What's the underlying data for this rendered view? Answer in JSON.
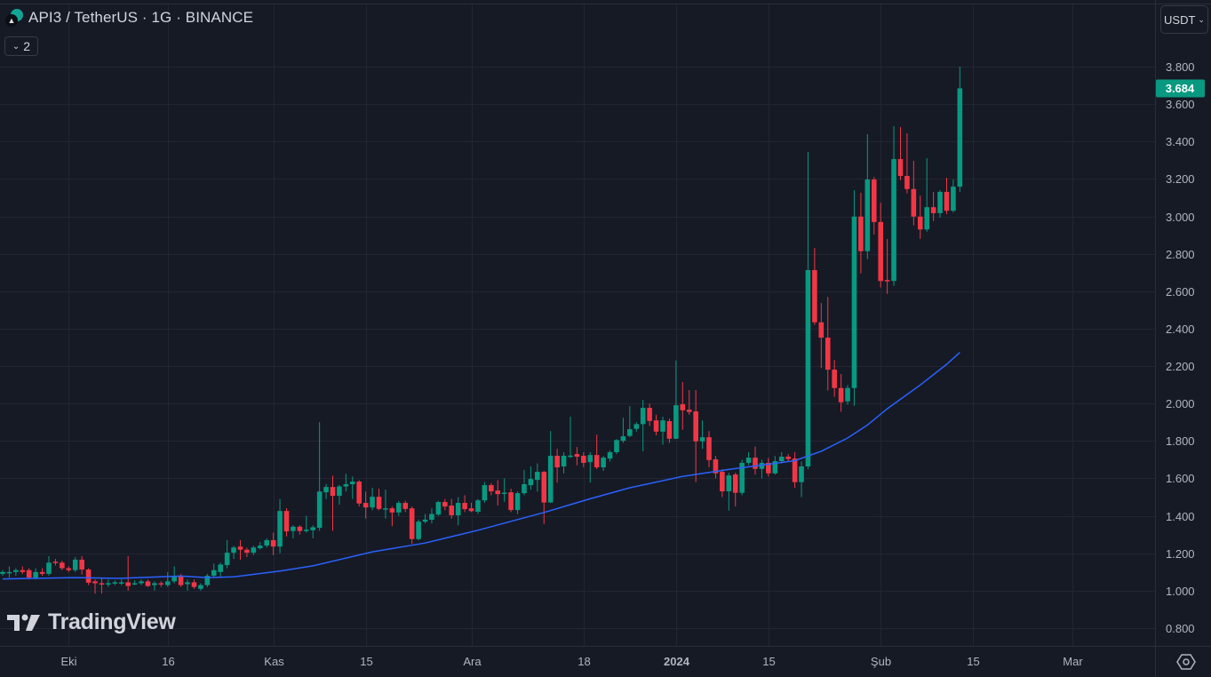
{
  "header": {
    "title": "API3 / TetherUS · 1G · BINANCE",
    "indicator_count": "2",
    "currency": "USDT"
  },
  "watermark": {
    "text": "TradingView"
  },
  "icons": {
    "symbol": "api3-logo-icon",
    "collapse": "chevron-down-icon",
    "currency": "chevron-down-icon",
    "settings": "gear-icon"
  },
  "colors": {
    "up": "#089981",
    "down": "#f23645",
    "ma": "#2962ff",
    "background": "#161a25",
    "grid": "#232632"
  },
  "chart_data": {
    "type": "candlestick",
    "title": "API3 / TetherUS · 1G · BINANCE",
    "ylim": [
      0.7,
      3.9
    ],
    "yticks": [
      "0.800",
      "1.000",
      "1.200",
      "1.400",
      "1.600",
      "1.800",
      "2.000",
      "2.200",
      "2.400",
      "2.600",
      "2.800",
      "3.000",
      "3.200",
      "3.400",
      "3.600",
      "3.800"
    ],
    "last_price": "3.684",
    "xticks": [
      {
        "label": "Eki",
        "index": 10
      },
      {
        "label": "16",
        "index": 25
      },
      {
        "label": "Kas",
        "index": 41
      },
      {
        "label": "15",
        "index": 55
      },
      {
        "label": "Ara",
        "index": 71
      },
      {
        "label": "18",
        "index": 88
      },
      {
        "label": "2024",
        "index": 102,
        "bold": true
      },
      {
        "label": "15",
        "index": 116
      },
      {
        "label": "Şub",
        "index": 133
      },
      {
        "label": "15",
        "index": 147
      },
      {
        "label": "Mar",
        "index": 162
      }
    ],
    "ohlc_fields": [
      "open",
      "high",
      "low",
      "close"
    ],
    "candles": [
      [
        1.09,
        1.11,
        1.08,
        1.1
      ],
      [
        1.1,
        1.13,
        1.07,
        1.1
      ],
      [
        1.1,
        1.12,
        1.08,
        1.11
      ],
      [
        1.11,
        1.13,
        1.09,
        1.1
      ],
      [
        1.11,
        1.12,
        1.06,
        1.07
      ],
      [
        1.07,
        1.12,
        1.06,
        1.1
      ],
      [
        1.1,
        1.12,
        1.08,
        1.09
      ],
      [
        1.09,
        1.185,
        1.08,
        1.15
      ],
      [
        1.155,
        1.17,
        1.135,
        1.15
      ],
      [
        1.15,
        1.16,
        1.11,
        1.12
      ],
      [
        1.12,
        1.13,
        1.1,
        1.11
      ],
      [
        1.11,
        1.18,
        1.1,
        1.166
      ],
      [
        1.166,
        1.185,
        1.086,
        1.113
      ],
      [
        1.113,
        1.12,
        1.03,
        1.043
      ],
      [
        1.05,
        1.06,
        0.985,
        1.04
      ],
      [
        1.04,
        1.07,
        0.985,
        1.035
      ],
      [
        1.035,
        1.06,
        1.02,
        1.04
      ],
      [
        1.04,
        1.055,
        1.03,
        1.045
      ],
      [
        1.04,
        1.06,
        1.03,
        1.045
      ],
      [
        1.045,
        1.185,
        1.0,
        1.025
      ],
      [
        1.04,
        1.055,
        1.03,
        1.04
      ],
      [
        1.04,
        1.06,
        1.03,
        1.05
      ],
      [
        1.05,
        1.06,
        1.02,
        1.025
      ],
      [
        1.03,
        1.05,
        1.0,
        1.04
      ],
      [
        1.04,
        1.05,
        1.02,
        1.035
      ],
      [
        1.03,
        1.1,
        1.02,
        1.05
      ],
      [
        1.05,
        1.13,
        1.04,
        1.08
      ],
      [
        1.08,
        1.09,
        1.02,
        1.03
      ],
      [
        1.035,
        1.06,
        1.0,
        1.045
      ],
      [
        1.045,
        1.06,
        1.01,
        1.02
      ],
      [
        1.01,
        1.04,
        1.0,
        1.03
      ],
      [
        1.03,
        1.09,
        1.02,
        1.08
      ],
      [
        1.08,
        1.145,
        1.07,
        1.11
      ],
      [
        1.1,
        1.15,
        1.07,
        1.14
      ],
      [
        1.137,
        1.27,
        1.12,
        1.203
      ],
      [
        1.203,
        1.24,
        1.17,
        1.231
      ],
      [
        1.236,
        1.27,
        1.165,
        1.219
      ],
      [
        1.219,
        1.23,
        1.18,
        1.203
      ],
      [
        1.203,
        1.24,
        1.19,
        1.231
      ],
      [
        1.227,
        1.26,
        1.22,
        1.241
      ],
      [
        1.241,
        1.28,
        1.23,
        1.27
      ],
      [
        1.27,
        1.31,
        1.19,
        1.236
      ],
      [
        1.236,
        1.49,
        1.2,
        1.426
      ],
      [
        1.426,
        1.44,
        1.29,
        1.317
      ],
      [
        1.319,
        1.35,
        1.28,
        1.342
      ],
      [
        1.342,
        1.35,
        1.3,
        1.319
      ],
      [
        1.326,
        1.4,
        1.31,
        1.326
      ],
      [
        1.323,
        1.35,
        1.28,
        1.339
      ],
      [
        1.336,
        1.9,
        1.32,
        1.53
      ],
      [
        1.526,
        1.57,
        1.49,
        1.554
      ],
      [
        1.554,
        1.615,
        1.32,
        1.507
      ],
      [
        1.507,
        1.565,
        1.46,
        1.557
      ],
      [
        1.557,
        1.625,
        1.53,
        1.569
      ],
      [
        1.569,
        1.61,
        1.49,
        1.583
      ],
      [
        1.583,
        1.59,
        1.45,
        1.466
      ],
      [
        1.469,
        1.53,
        1.385,
        1.445
      ],
      [
        1.445,
        1.55,
        1.43,
        1.502
      ],
      [
        1.502,
        1.545,
        1.43,
        1.437
      ],
      [
        1.437,
        1.54,
        1.385,
        1.44
      ],
      [
        1.44,
        1.45,
        1.345,
        1.418
      ],
      [
        1.418,
        1.48,
        1.4,
        1.469
      ],
      [
        1.469,
        1.48,
        1.42,
        1.437
      ],
      [
        1.44,
        1.45,
        1.25,
        1.276
      ],
      [
        1.276,
        1.38,
        1.27,
        1.369
      ],
      [
        1.369,
        1.41,
        1.36,
        1.38
      ],
      [
        1.379,
        1.44,
        1.36,
        1.41
      ],
      [
        1.407,
        1.48,
        1.4,
        1.474
      ],
      [
        1.474,
        1.49,
        1.43,
        1.45
      ],
      [
        1.455,
        1.49,
        1.385,
        1.403
      ],
      [
        1.403,
        1.5,
        1.35,
        1.469
      ],
      [
        1.469,
        1.51,
        1.42,
        1.436
      ],
      [
        1.44,
        1.47,
        1.42,
        1.425
      ],
      [
        1.422,
        1.49,
        1.41,
        1.483
      ],
      [
        1.483,
        1.58,
        1.47,
        1.564
      ],
      [
        1.564,
        1.575,
        1.51,
        1.531
      ],
      [
        1.535,
        1.59,
        1.455,
        1.516
      ],
      [
        1.524,
        1.6,
        1.475,
        1.524
      ],
      [
        1.526,
        1.545,
        1.42,
        1.431
      ],
      [
        1.431,
        1.53,
        1.41,
        1.521
      ],
      [
        1.521,
        1.645,
        1.51,
        1.569
      ],
      [
        1.564,
        1.664,
        1.54,
        1.597
      ],
      [
        1.592,
        1.68,
        1.53,
        1.635
      ],
      [
        1.635,
        1.64,
        1.356,
        1.471
      ],
      [
        1.471,
        1.853,
        1.47,
        1.721
      ],
      [
        1.721,
        1.758,
        1.578,
        1.659
      ],
      [
        1.664,
        1.74,
        1.626,
        1.721
      ],
      [
        1.719,
        1.93,
        1.71,
        1.722
      ],
      [
        1.73,
        1.768,
        1.67,
        1.716
      ],
      [
        1.721,
        1.74,
        1.66,
        1.683
      ],
      [
        1.687,
        1.74,
        1.578,
        1.725
      ],
      [
        1.725,
        1.834,
        1.65,
        1.659
      ],
      [
        1.659,
        1.72,
        1.64,
        1.711
      ],
      [
        1.706,
        1.75,
        1.69,
        1.74
      ],
      [
        1.74,
        1.81,
        1.73,
        1.805
      ],
      [
        1.801,
        1.924,
        1.79,
        1.825
      ],
      [
        1.827,
        1.986,
        1.82,
        1.863
      ],
      [
        1.865,
        1.9,
        1.85,
        1.89
      ],
      [
        1.89,
        2.02,
        1.745,
        1.977
      ],
      [
        1.977,
        2.0,
        1.88,
        1.907
      ],
      [
        1.91,
        1.94,
        1.83,
        1.85
      ],
      [
        1.85,
        1.93,
        1.78,
        1.91
      ],
      [
        1.906,
        1.92,
        1.79,
        1.812
      ],
      [
        1.812,
        2.23,
        1.81,
        1.991
      ],
      [
        1.996,
        2.115,
        1.86,
        1.964
      ],
      [
        1.967,
        2.072,
        1.94,
        1.955
      ],
      [
        1.958,
        2.072,
        1.58,
        1.798
      ],
      [
        1.798,
        1.91,
        1.758,
        1.82
      ],
      [
        1.82,
        1.853,
        1.66,
        1.698
      ],
      [
        1.702,
        1.72,
        1.6,
        1.627
      ],
      [
        1.635,
        1.65,
        1.5,
        1.531
      ],
      [
        1.531,
        1.63,
        1.428,
        1.616
      ],
      [
        1.621,
        1.63,
        1.45,
        1.523
      ],
      [
        1.523,
        1.7,
        1.51,
        1.683
      ],
      [
        1.683,
        1.74,
        1.67,
        1.711
      ],
      [
        1.711,
        1.77,
        1.62,
        1.651
      ],
      [
        1.651,
        1.7,
        1.6,
        1.683
      ],
      [
        1.683,
        1.71,
        1.61,
        1.627
      ],
      [
        1.627,
        1.72,
        1.62,
        1.692
      ],
      [
        1.692,
        1.74,
        1.68,
        1.716
      ],
      [
        1.716,
        1.73,
        1.69,
        1.703
      ],
      [
        1.706,
        1.74,
        1.55,
        1.58
      ],
      [
        1.58,
        1.69,
        1.5,
        1.664
      ],
      [
        1.664,
        3.344,
        1.65,
        2.713
      ],
      [
        2.713,
        2.831,
        2.42,
        2.434
      ],
      [
        2.434,
        2.537,
        2.189,
        2.352
      ],
      [
        2.352,
        2.57,
        2.07,
        2.181
      ],
      [
        2.181,
        2.233,
        2.036,
        2.083
      ],
      [
        2.083,
        2.158,
        1.956,
        2.007
      ],
      [
        2.012,
        2.099,
        1.993,
        2.083
      ],
      [
        2.083,
        3.14,
        1.988,
        2.999
      ],
      [
        2.999,
        3.126,
        2.695,
        2.814
      ],
      [
        2.814,
        3.439,
        2.771,
        3.197
      ],
      [
        3.197,
        3.21,
        2.903,
        2.97
      ],
      [
        2.97,
        3.072,
        2.62,
        2.655
      ],
      [
        2.66,
        2.879,
        2.586,
        2.655
      ],
      [
        2.655,
        3.482,
        2.629,
        3.306
      ],
      [
        3.306,
        3.477,
        3.194,
        3.216
      ],
      [
        3.216,
        3.444,
        3.123,
        3.146
      ],
      [
        3.146,
        3.297,
        2.952,
        2.999
      ],
      [
        2.999,
        3.111,
        2.88,
        2.93
      ],
      [
        2.93,
        3.311,
        2.918,
        3.049
      ],
      [
        3.049,
        3.131,
        2.975,
        3.017
      ],
      [
        3.017,
        3.14,
        2.993,
        3.131
      ],
      [
        3.131,
        3.206,
        3.012,
        3.03
      ],
      [
        3.03,
        3.197,
        3.021,
        3.159
      ],
      [
        3.159,
        3.8,
        3.131,
        3.684
      ]
    ],
    "moving_average": {
      "name": "MA",
      "points": [
        [
          0,
          1.063
        ],
        [
          11,
          1.07
        ],
        [
          17.5,
          1.066
        ],
        [
          27,
          1.078
        ],
        [
          31,
          1.07
        ],
        [
          35,
          1.074
        ],
        [
          42,
          1.105
        ],
        [
          47,
          1.133
        ],
        [
          56,
          1.208
        ],
        [
          64,
          1.255
        ],
        [
          72,
          1.323
        ],
        [
          82,
          1.418
        ],
        [
          89,
          1.491
        ],
        [
          95,
          1.55
        ],
        [
          103,
          1.611
        ],
        [
          110,
          1.648
        ],
        [
          120,
          1.695
        ],
        [
          122,
          1.72
        ],
        [
          124,
          1.745
        ],
        [
          128,
          1.816
        ],
        [
          131,
          1.885
        ],
        [
          134,
          1.972
        ],
        [
          139,
          2.099
        ],
        [
          143,
          2.21
        ],
        [
          145,
          2.273
        ]
      ]
    }
  }
}
